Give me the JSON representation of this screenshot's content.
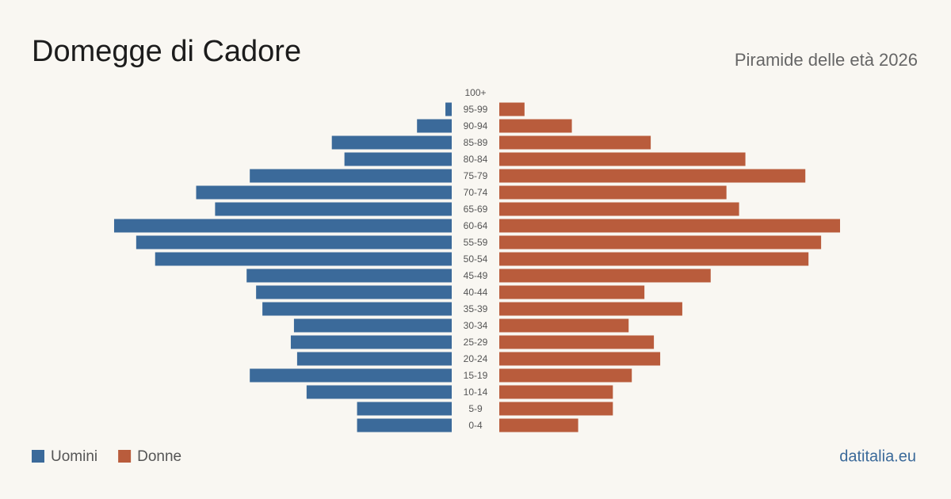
{
  "chart_data": {
    "type": "pyramid",
    "title": "Domegge di Cadore",
    "subtitle": "Piramide delle età 2026",
    "source": "datitalia.eu",
    "categories": [
      "100+",
      "95-99",
      "90-94",
      "85-89",
      "80-84",
      "75-79",
      "70-74",
      "65-69",
      "60-64",
      "55-59",
      "50-54",
      "45-49",
      "40-44",
      "35-39",
      "30-34",
      "25-29",
      "20-24",
      "15-19",
      "10-14",
      "5-9",
      "0-4"
    ],
    "series": [
      {
        "name": "Uomini",
        "color": "#3b6a9a",
        "values": [
          0,
          2,
          11,
          38,
          34,
          64,
          81,
          75,
          107,
          100,
          94,
          65,
          62,
          60,
          50,
          51,
          49,
          64,
          46,
          30,
          30
        ]
      },
      {
        "name": "Donne",
        "color": "#b95c3c",
        "values": [
          0,
          8,
          23,
          48,
          78,
          97,
          72,
          76,
          108,
          102,
          98,
          67,
          46,
          58,
          41,
          49,
          51,
          42,
          36,
          36,
          25
        ]
      }
    ]
  }
}
